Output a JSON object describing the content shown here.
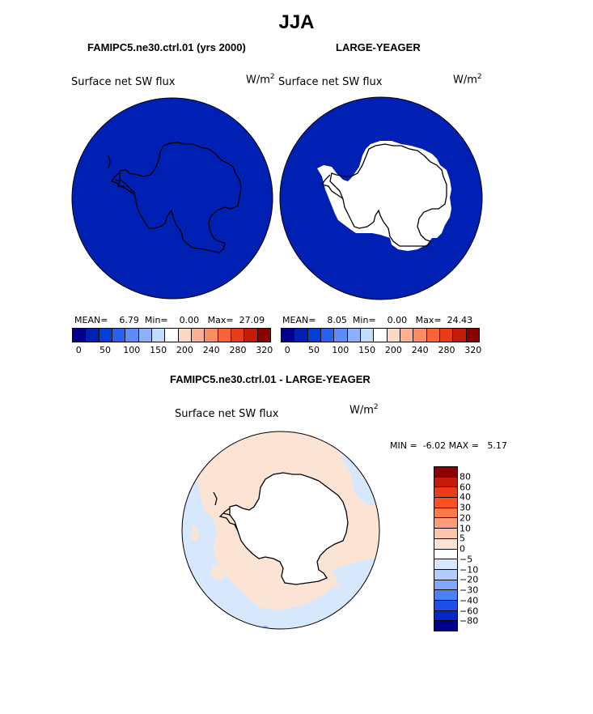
{
  "title": "JJA",
  "panels": [
    {
      "title": "FAMIPC5.ne30.ctrl.01 (yrs 2000)",
      "variable": "Surface net SW flux",
      "units_base": "W/m",
      "units_exp": "2",
      "stats": {
        "mean_label": "MEAN=",
        "mean": "6.79",
        "min_label": "Min=",
        "min": "0.00",
        "max_label": "Max=",
        "max": "27.09"
      }
    },
    {
      "title": "LARGE-YEAGER",
      "variable": "Surface net SW flux",
      "units_base": "W/m",
      "units_exp": "2",
      "stats": {
        "mean_label": "MEAN=",
        "mean": "8.05",
        "min_label": "Min=",
        "min": "0.00",
        "max_label": "Max=",
        "max": "24.43"
      }
    }
  ],
  "diff_panel": {
    "title": "FAMIPC5.ne30.ctrl.01 - LARGE-YEAGER",
    "variable": "Surface net SW flux",
    "units_base": "W/m",
    "units_exp": "2",
    "minmax": {
      "min_label": "MIN =",
      "min": "-6.02",
      "max_label": "MAX =",
      "max": "5.17"
    }
  },
  "chart_data": [
    {
      "type": "heatmap",
      "projection": "south-polar-stereographic",
      "title": "FAMIPC5.ne30.ctrl.01 (yrs 2000)",
      "variable": "Surface net SW flux",
      "mean": 6.79,
      "min": 0.0,
      "max": 27.09,
      "colorbar_ticks": [
        0,
        50,
        100,
        150,
        200,
        240,
        280,
        320
      ],
      "colorbar_colors": [
        "#00008c",
        "#0020b4",
        "#0040d8",
        "#2860f0",
        "#5c8cf8",
        "#8cb0fc",
        "#c4dcfc",
        "#ffffff",
        "#fcd8c4",
        "#fcb090",
        "#fc8c64",
        "#fc6438",
        "#e83c18",
        "#c41c08",
        "#8c0000"
      ],
      "ocean_color": "#0020b4"
    },
    {
      "type": "heatmap",
      "projection": "south-polar-stereographic",
      "title": "LARGE-YEAGER",
      "variable": "Surface net SW flux",
      "mean": 8.05,
      "min": 0.0,
      "max": 24.43,
      "colorbar_ticks": [
        0,
        50,
        100,
        150,
        200,
        240,
        280,
        320
      ],
      "colorbar_colors": [
        "#00008c",
        "#0020b4",
        "#0040d8",
        "#2860f0",
        "#5c8cf8",
        "#8cb0fc",
        "#c4dcfc",
        "#ffffff",
        "#fcd8c4",
        "#fcb090",
        "#fc8c64",
        "#fc6438",
        "#e83c18",
        "#c41c08",
        "#8c0000"
      ],
      "ocean_color": "#0020b4"
    },
    {
      "type": "heatmap",
      "projection": "south-polar-stereographic",
      "title": "FAMIPC5.ne30.ctrl.01 - LARGE-YEAGER",
      "variable": "Surface net SW flux",
      "min": -6.02,
      "max": 5.17,
      "colorbar_levels": [
        80,
        60,
        40,
        30,
        20,
        10,
        5,
        0,
        -5,
        -10,
        -20,
        -30,
        -40,
        -60,
        -80
      ],
      "colorbar_colors": [
        "#8c0000",
        "#c41c08",
        "#e83c18",
        "#fc5020",
        "#fc7848",
        "#fc9c78",
        "#fcc4a8",
        "#fce4d4",
        "#ffffff",
        "#d8e8fc",
        "#b0ccfc",
        "#80a8fc",
        "#4c80f8",
        "#1c50e8",
        "#0028c4",
        "#00008c"
      ],
      "positive_color": "#fce4d4",
      "negative_color": "#d8e8fc"
    }
  ]
}
